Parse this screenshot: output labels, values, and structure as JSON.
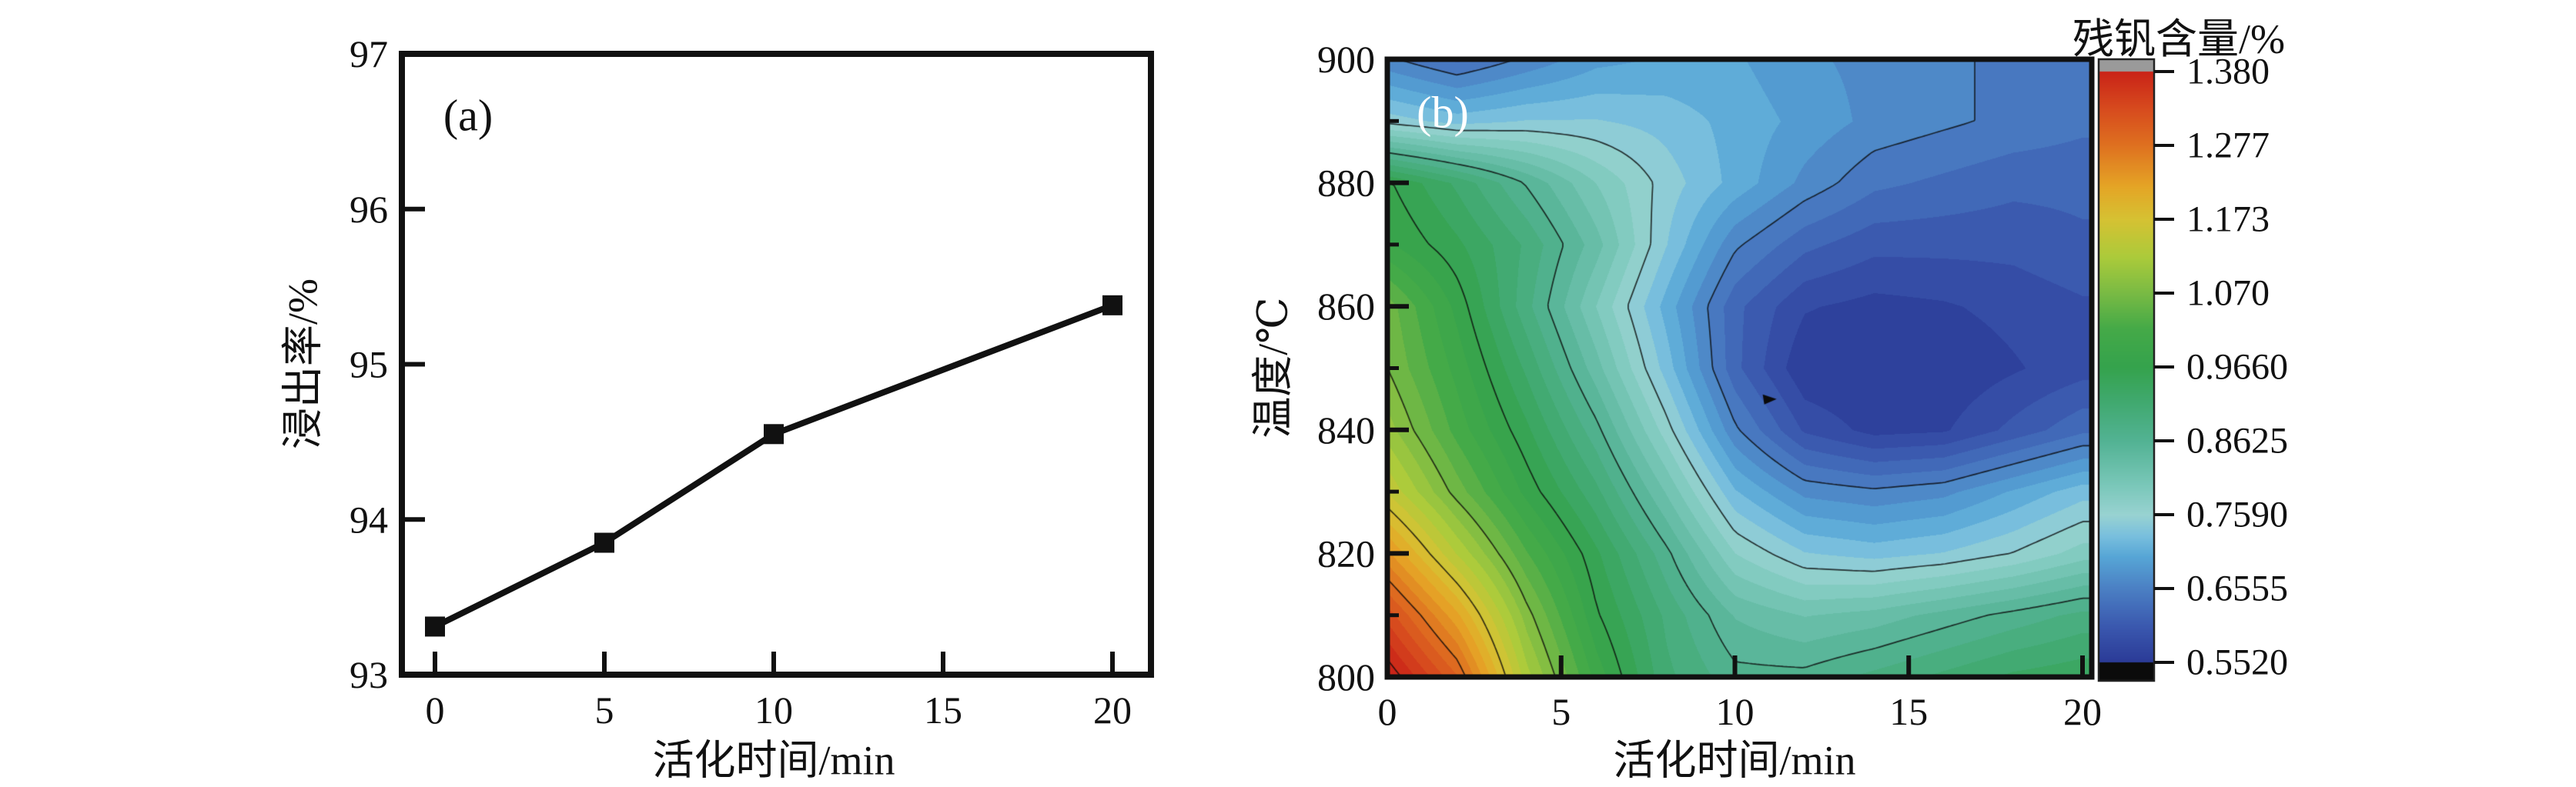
{
  "accent_black": "#111111",
  "panels": {
    "a": {
      "label": "(a)",
      "xlabel": "活化时间/min",
      "ylabel": "浸出率/%"
    },
    "b": {
      "label": "(b)",
      "xlabel": "活化时间/min",
      "ylabel": "温度/℃",
      "colorbar_title": "残钒含量/%"
    }
  },
  "chart_data": [
    {
      "type": "line",
      "panel_label": "(a)",
      "title": "",
      "xlabel": "活化时间/min",
      "ylabel": "浸出率/%",
      "x": [
        0,
        5,
        10,
        20
      ],
      "y": [
        93.31,
        93.85,
        94.55,
        95.38
      ],
      "x_ticks": [
        0,
        5,
        10,
        15,
        20
      ],
      "x_tick_labels": [
        "0",
        "5",
        "10",
        "15",
        "20"
      ],
      "y_ticks": [
        93,
        94,
        95,
        96,
        97
      ],
      "y_tick_labels": [
        "93",
        "94",
        "95",
        "96",
        "97"
      ],
      "xlim": [
        0,
        21.1
      ],
      "ylim": [
        93,
        97
      ],
      "grid": false,
      "marker": "square",
      "marker_size": 26,
      "line_width": 8,
      "line_color": "#111111"
    },
    {
      "type": "heatmap",
      "panel_label": "(b)",
      "title": "",
      "xlabel": "活化时间/min",
      "ylabel": "温度/℃",
      "colorbar_title": "残钒含量/%",
      "x_ticks": [
        0,
        5,
        10,
        15,
        20
      ],
      "x_tick_labels": [
        "0",
        "5",
        "10",
        "15",
        "20"
      ],
      "y_ticks": [
        800,
        820,
        840,
        860,
        880,
        900
      ],
      "y_tick_labels": [
        "800",
        "820",
        "840",
        "860",
        "880",
        "900"
      ],
      "y_minor_ticks": [
        810,
        830,
        850,
        870,
        890
      ],
      "xlim": [
        0,
        20
      ],
      "ylim": [
        800,
        900
      ],
      "grid": false,
      "colorbar_tick_labels": [
        "1.380",
        "1.277",
        "1.173",
        "1.070",
        "0.9660",
        "0.8625",
        "0.7590",
        "0.6555",
        "0.5520"
      ],
      "colorbar_tick_values": [
        1.38,
        1.277,
        1.173,
        1.07,
        0.966,
        0.8625,
        0.759,
        0.6555,
        0.552
      ],
      "colorbar_range": [
        0.552,
        1.38
      ],
      "colorbar_over_color": "#9a9a9a",
      "colorbar_under_color": "#0b0b0b",
      "contour_levels": [
        0.6555,
        0.759,
        0.8625,
        0.966,
        1.07,
        1.173,
        1.277,
        1.38
      ],
      "t_values": [
        0,
        2,
        4,
        6,
        8,
        10,
        12,
        14,
        16,
        18,
        20
      ],
      "T_values": [
        800,
        810,
        820,
        830,
        840,
        850,
        860,
        870,
        880,
        890,
        900
      ],
      "values": [
        [
          1.4,
          1.3,
          1.12,
          1.0,
          0.91,
          0.87,
          0.87,
          0.89,
          0.91,
          0.93,
          0.94
        ],
        [
          1.33,
          1.22,
          1.08,
          0.97,
          0.9,
          0.84,
          0.82,
          0.83,
          0.85,
          0.87,
          0.89
        ],
        [
          1.24,
          1.13,
          1.03,
          0.95,
          0.87,
          0.78,
          0.74,
          0.73,
          0.74,
          0.76,
          0.79
        ],
        [
          1.15,
          1.06,
          0.98,
          0.91,
          0.82,
          0.72,
          0.67,
          0.66,
          0.67,
          0.7,
          0.73
        ],
        [
          1.1,
          1.02,
          0.95,
          0.87,
          0.77,
          0.66,
          0.59,
          0.565,
          0.57,
          0.6,
          0.63
        ],
        [
          1.07,
          1.0,
          0.92,
          0.83,
          0.73,
          0.62,
          0.555,
          0.55,
          0.555,
          0.57,
          0.585
        ],
        [
          1.06,
          0.98,
          0.89,
          0.8,
          0.71,
          0.62,
          0.575,
          0.565,
          0.57,
          0.58,
          0.59
        ],
        [
          0.99,
          0.95,
          0.9,
          0.83,
          0.74,
          0.66,
          0.62,
          0.6,
          0.6,
          0.6,
          0.61
        ],
        [
          0.97,
          0.92,
          0.86,
          0.8,
          0.75,
          0.71,
          0.67,
          0.64,
          0.63,
          0.62,
          0.62
        ],
        [
          0.75,
          0.73,
          0.74,
          0.74,
          0.73,
          0.71,
          0.69,
          0.67,
          0.66,
          0.65,
          0.64
        ],
        [
          0.66,
          0.63,
          0.66,
          0.69,
          0.7,
          0.7,
          0.68,
          0.67,
          0.66,
          0.65,
          0.64
        ]
      ],
      "min_marker": {
        "t": 11,
        "T": 845
      },
      "colormap": [
        [
          0.552,
          "#2b3b97"
        ],
        [
          0.6,
          "#3a57ae"
        ],
        [
          0.6555,
          "#4b80c4"
        ],
        [
          0.7,
          "#57a6d6"
        ],
        [
          0.73,
          "#7ac0de"
        ],
        [
          0.759,
          "#99d3d2"
        ],
        [
          0.8,
          "#7bc8ba"
        ],
        [
          0.8625,
          "#53b394"
        ],
        [
          0.92,
          "#40a96e"
        ],
        [
          0.966,
          "#35a34d"
        ],
        [
          1.02,
          "#45aa48"
        ],
        [
          1.07,
          "#7abb44"
        ],
        [
          1.12,
          "#accb3b"
        ],
        [
          1.173,
          "#d6c233"
        ],
        [
          1.22,
          "#e5a526"
        ],
        [
          1.277,
          "#df7120"
        ],
        [
          1.33,
          "#d74a1e"
        ],
        [
          1.38,
          "#ca2418"
        ]
      ]
    }
  ]
}
